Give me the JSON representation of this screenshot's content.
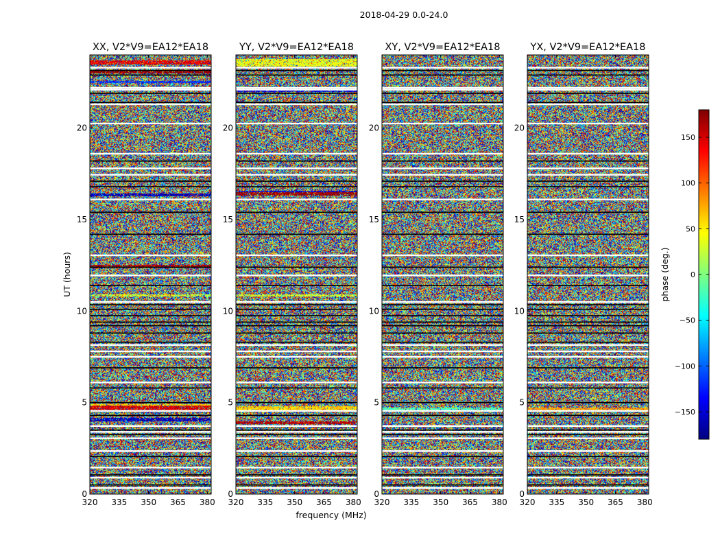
{
  "figure": {
    "suptitle": "2018-04-29 0.0-24.0"
  },
  "chart_data": [
    {
      "type": "heatmap",
      "title": "XX, V2*V9=EA12*EA18",
      "xlabel": "",
      "ylabel": "UT (hours)",
      "xlim": [
        320,
        382
      ],
      "ylim": [
        0,
        24
      ],
      "xticks": [
        320,
        335,
        350,
        365,
        380
      ],
      "yticks": [
        0,
        5,
        10,
        15,
        20
      ],
      "flagged_rows_ut": [
        0.33,
        0.9,
        1.45,
        2.35,
        3.05,
        3.4,
        3.72,
        4.55,
        6.1,
        7.5,
        7.8,
        8.15,
        10.5,
        11.95,
        13.05,
        16.1,
        17.45,
        17.8,
        18.6,
        20.25,
        21.3,
        22.1,
        22.2,
        23.3
      ],
      "black_rows_ut": [
        0.5,
        1.05,
        2.05,
        3.25,
        3.5,
        4.3,
        5.0,
        5.8,
        6.9,
        8.3,
        8.8,
        9.2,
        9.4,
        9.75,
        10.1,
        10.35,
        11.4,
        12.4,
        14.2,
        15.4,
        16.8,
        17.1,
        18.2,
        21.4,
        21.9,
        22.9,
        23.15
      ],
      "bands": [
        {
          "ut": [
            4.6,
            4.85
          ],
          "phase": 150
        },
        {
          "ut": [
            4.0,
            4.2
          ],
          "phase": -160
        },
        {
          "ut": [
            4.85,
            4.95
          ],
          "phase": 60
        },
        {
          "ut": [
            16.3,
            16.45
          ],
          "phase": -160
        },
        {
          "ut": [
            12.4,
            12.55
          ],
          "phase": 160
        },
        {
          "ut": [
            23.5,
            23.7
          ],
          "phase": 140
        },
        {
          "ut": [
            23.0,
            23.15
          ],
          "phase": 170
        },
        {
          "ut": [
            22.5,
            22.6
          ],
          "phase": -120
        },
        {
          "ut": [
            10.8,
            10.95
          ],
          "phase": 30
        }
      ]
    },
    {
      "type": "heatmap",
      "title": "YY, V2*V9=EA12*EA18",
      "xlabel": "frequency (MHz)",
      "ylabel": "",
      "xlim": [
        320,
        382
      ],
      "ylim": [
        0,
        24
      ],
      "xticks": [
        320,
        335,
        350,
        365,
        380
      ],
      "yticks": [
        0,
        5,
        10,
        15,
        20
      ],
      "flagged_rows_ut": [
        0.33,
        0.9,
        1.45,
        2.35,
        3.05,
        3.4,
        3.72,
        4.55,
        6.1,
        7.5,
        7.8,
        8.15,
        10.5,
        11.95,
        13.05,
        16.1,
        17.45,
        17.8,
        18.6,
        20.25,
        21.3,
        22.1,
        22.2,
        23.3
      ],
      "black_rows_ut": [
        0.5,
        1.05,
        2.05,
        3.25,
        3.5,
        4.3,
        5.0,
        5.8,
        6.9,
        8.3,
        8.8,
        9.2,
        9.4,
        9.75,
        10.1,
        10.35,
        11.4,
        12.4,
        14.2,
        15.4,
        16.8,
        17.1,
        18.2,
        21.4,
        21.9,
        22.9,
        23.15
      ],
      "bands": [
        {
          "ut": [
            4.6,
            4.8
          ],
          "phase": 60
        },
        {
          "ut": [
            3.85,
            4.0
          ],
          "phase": 160
        },
        {
          "ut": [
            16.35,
            16.5
          ],
          "phase": 170
        },
        {
          "ut": [
            16.5,
            16.6
          ],
          "phase": -150
        },
        {
          "ut": [
            23.4,
            23.8
          ],
          "phase": 40
        },
        {
          "ut": [
            22.0,
            22.15
          ],
          "phase": -150
        },
        {
          "ut": [
            10.8,
            10.95
          ],
          "phase": 30
        }
      ]
    },
    {
      "type": "heatmap",
      "title": "XY, V2*V9=EA12*EA18",
      "xlabel": "",
      "ylabel": "",
      "xlim": [
        320,
        382
      ],
      "ylim": [
        0,
        24
      ],
      "xticks": [
        320,
        335,
        350,
        365,
        380
      ],
      "yticks": [
        0,
        5,
        10,
        15,
        20
      ],
      "flagged_rows_ut": [
        0.33,
        0.9,
        1.45,
        2.35,
        3.05,
        3.4,
        3.72,
        4.55,
        6.1,
        7.5,
        7.8,
        8.15,
        10.5,
        11.95,
        13.05,
        16.1,
        17.45,
        17.8,
        18.6,
        20.25,
        21.3,
        22.1,
        22.2,
        23.3
      ],
      "black_rows_ut": [
        0.5,
        1.05,
        2.05,
        3.25,
        3.5,
        4.3,
        5.0,
        5.8,
        6.9,
        8.3,
        8.8,
        9.2,
        9.4,
        9.75,
        10.1,
        10.35,
        11.4,
        12.4,
        14.2,
        15.4,
        16.8,
        17.1,
        18.2,
        21.4,
        21.9,
        22.9,
        23.15
      ],
      "bands": [
        {
          "ut": [
            4.6,
            4.75
          ],
          "phase": -20
        }
      ]
    },
    {
      "type": "heatmap",
      "title": "YX, V2*V9=EA12*EA18",
      "xlabel": "",
      "ylabel": "",
      "xlim": [
        320,
        382
      ],
      "ylim": [
        0,
        24
      ],
      "xticks": [
        320,
        335,
        350,
        365,
        380
      ],
      "yticks": [
        0,
        5,
        10,
        15,
        20
      ],
      "flagged_rows_ut": [
        0.33,
        0.9,
        1.45,
        2.35,
        3.05,
        3.4,
        3.72,
        4.55,
        6.1,
        7.5,
        7.8,
        8.15,
        10.5,
        11.95,
        13.05,
        16.1,
        17.45,
        17.8,
        18.6,
        20.25,
        21.3,
        22.1,
        22.2,
        23.3
      ],
      "black_rows_ut": [
        0.5,
        1.05,
        2.05,
        3.25,
        3.5,
        4.3,
        5.0,
        5.8,
        6.9,
        8.3,
        8.8,
        9.2,
        9.4,
        9.75,
        10.1,
        10.35,
        11.4,
        12.4,
        14.2,
        15.4,
        16.8,
        17.1,
        18.2,
        21.4,
        21.9,
        22.9,
        23.15
      ],
      "bands": [
        {
          "ut": [
            4.6,
            4.75
          ],
          "phase": 80
        }
      ]
    }
  ],
  "colorbar": {
    "label": "phase (deg.)",
    "range": [
      -180,
      180
    ],
    "ticks": [
      150,
      100,
      50,
      0,
      -50,
      -100,
      -150
    ],
    "tick_labels": [
      "150",
      "100",
      "50",
      "0",
      "−50",
      "−100",
      "−150"
    ],
    "colormap": "jet",
    "colors": [
      "#00007f",
      "#0000ff",
      "#007fff",
      "#00ffff",
      "#7fff7f",
      "#ffff00",
      "#ff7f00",
      "#ff0000",
      "#7f0000"
    ]
  }
}
